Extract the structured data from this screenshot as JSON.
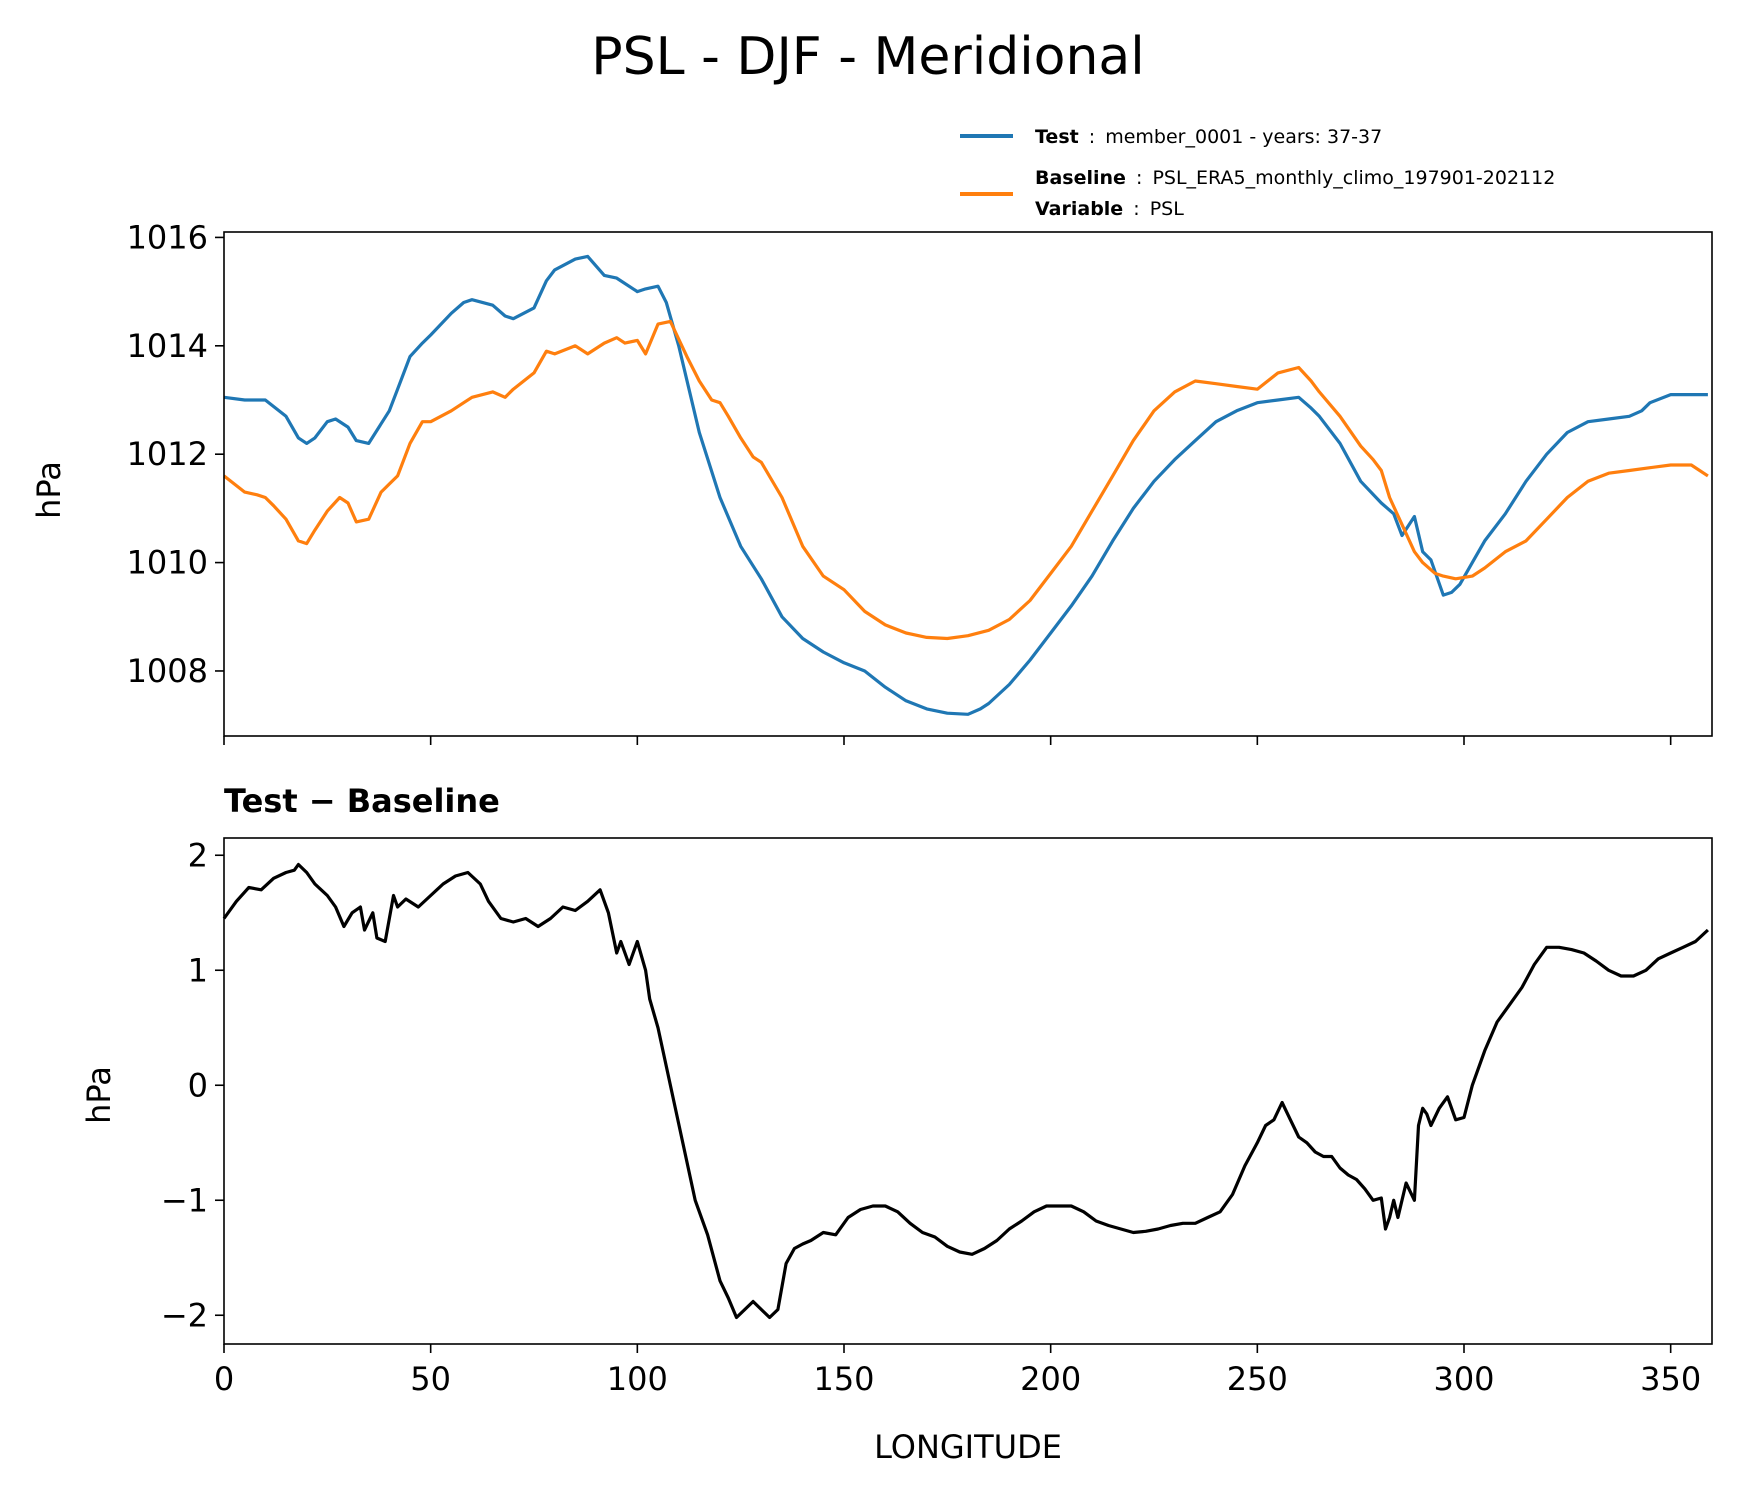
{
  "title": "PSL - DJF - Meridional",
  "legend": {
    "test_label": "Test",
    "test_text": "member_0001 - years: 37-37",
    "baseline_label": "Baseline",
    "baseline_text": "PSL_ERA5_monthly_climo_197901-202112",
    "variable_label": "Variable",
    "variable_text": "PSL",
    "sep": ":"
  },
  "colors": {
    "test": "#1f77b4",
    "baseline": "#ff7f0e",
    "diff": "#000000"
  },
  "chart_data": [
    {
      "type": "line",
      "title": "",
      "xlabel": "",
      "ylabel": "hPa",
      "xlim": [
        0,
        360
      ],
      "ylim": [
        1006.8,
        1016.1
      ],
      "yticks": [
        1008,
        1010,
        1012,
        1014,
        1016
      ],
      "ytick_labels": [
        "1008",
        "1010",
        "1012",
        "1014",
        "1016"
      ],
      "xticks": [
        0,
        50,
        100,
        150,
        200,
        250,
        300,
        350
      ],
      "series": [
        {
          "name": "Test",
          "x": [
            0,
            5,
            10,
            15,
            18,
            20,
            22,
            25,
            27,
            30,
            32,
            35,
            40,
            42,
            45,
            48,
            50,
            55,
            58,
            60,
            65,
            68,
            70,
            75,
            78,
            80,
            85,
            88,
            92,
            95,
            100,
            102,
            105,
            107,
            110,
            115,
            120,
            125,
            130,
            135,
            140,
            145,
            150,
            155,
            160,
            165,
            170,
            175,
            180,
            183,
            185,
            190,
            195,
            200,
            205,
            210,
            215,
            220,
            225,
            230,
            235,
            240,
            245,
            250,
            255,
            260,
            263,
            265,
            270,
            275,
            280,
            283,
            285,
            288,
            290,
            292,
            295,
            297,
            299,
            302,
            305,
            310,
            315,
            320,
            325,
            330,
            335,
            340,
            343,
            345,
            350,
            355,
            359
          ],
          "values": [
            1013.05,
            1013.0,
            1013.0,
            1012.7,
            1012.3,
            1012.2,
            1012.3,
            1012.6,
            1012.65,
            1012.5,
            1012.25,
            1012.2,
            1012.8,
            1013.2,
            1013.8,
            1014.05,
            1014.2,
            1014.6,
            1014.8,
            1014.85,
            1014.75,
            1014.55,
            1014.5,
            1014.7,
            1015.2,
            1015.4,
            1015.6,
            1015.65,
            1015.3,
            1015.25,
            1015.0,
            1015.05,
            1015.1,
            1014.8,
            1014.0,
            1012.4,
            1011.2,
            1010.3,
            1009.7,
            1009.0,
            1008.6,
            1008.35,
            1008.15,
            1008.0,
            1007.7,
            1007.45,
            1007.3,
            1007.22,
            1007.2,
            1007.3,
            1007.4,
            1007.75,
            1008.2,
            1008.7,
            1009.2,
            1009.75,
            1010.4,
            1011.0,
            1011.5,
            1011.9,
            1012.25,
            1012.6,
            1012.8,
            1012.95,
            1013.0,
            1013.05,
            1012.85,
            1012.7,
            1012.2,
            1011.5,
            1011.1,
            1010.9,
            1010.5,
            1010.85,
            1010.2,
            1010.05,
            1009.4,
            1009.45,
            1009.6,
            1010.0,
            1010.4,
            1010.9,
            1011.5,
            1012.0,
            1012.4,
            1012.6,
            1012.65,
            1012.7,
            1012.8,
            1012.95,
            1013.1,
            1013.1,
            1013.1
          ]
        },
        {
          "name": "Baseline",
          "x": [
            0,
            5,
            8,
            10,
            12,
            15,
            18,
            20,
            22,
            25,
            28,
            30,
            32,
            35,
            38,
            40,
            42,
            45,
            48,
            50,
            55,
            58,
            60,
            65,
            68,
            70,
            75,
            78,
            80,
            85,
            88,
            92,
            95,
            97,
            100,
            102,
            105,
            108,
            112,
            115,
            118,
            120,
            122,
            125,
            128,
            130,
            135,
            140,
            145,
            150,
            155,
            160,
            165,
            170,
            175,
            180,
            185,
            190,
            195,
            200,
            205,
            210,
            215,
            220,
            225,
            230,
            235,
            240,
            245,
            250,
            255,
            260,
            263,
            265,
            270,
            275,
            278,
            280,
            282,
            285,
            288,
            290,
            293,
            295,
            298,
            302,
            305,
            310,
            315,
            320,
            325,
            330,
            335,
            340,
            345,
            350,
            355,
            359
          ],
          "values": [
            1011.6,
            1011.3,
            1011.25,
            1011.2,
            1011.05,
            1010.8,
            1010.4,
            1010.35,
            1010.6,
            1010.95,
            1011.2,
            1011.1,
            1010.75,
            1010.8,
            1011.3,
            1011.45,
            1011.6,
            1012.2,
            1012.6,
            1012.6,
            1012.8,
            1012.95,
            1013.05,
            1013.15,
            1013.05,
            1013.2,
            1013.5,
            1013.9,
            1013.85,
            1014.0,
            1013.85,
            1014.05,
            1014.15,
            1014.05,
            1014.1,
            1013.85,
            1014.4,
            1014.45,
            1013.8,
            1013.35,
            1013.0,
            1012.95,
            1012.7,
            1012.3,
            1011.95,
            1011.85,
            1011.2,
            1010.3,
            1009.75,
            1009.5,
            1009.1,
            1008.85,
            1008.7,
            1008.62,
            1008.6,
            1008.65,
            1008.75,
            1008.95,
            1009.3,
            1009.8,
            1010.3,
            1010.95,
            1011.6,
            1012.25,
            1012.8,
            1013.15,
            1013.35,
            1013.3,
            1013.25,
            1013.2,
            1013.5,
            1013.6,
            1013.35,
            1013.15,
            1012.7,
            1012.15,
            1011.9,
            1011.7,
            1011.2,
            1010.7,
            1010.2,
            1010.0,
            1009.8,
            1009.75,
            1009.7,
            1009.75,
            1009.9,
            1010.2,
            1010.4,
            1010.8,
            1011.2,
            1011.5,
            1011.65,
            1011.7,
            1011.75,
            1011.8,
            1011.8,
            1011.6
          ]
        }
      ]
    },
    {
      "type": "line",
      "title": "Test − Baseline",
      "xlabel": "LONGITUDE",
      "ylabel": "hPa",
      "xlim": [
        0,
        360
      ],
      "ylim": [
        -2.25,
        2.15
      ],
      "yticks": [
        -2,
        -1,
        0,
        1,
        2
      ],
      "ytick_labels": [
        "−2",
        "−1",
        "0",
        "1",
        "2"
      ],
      "xticks": [
        0,
        50,
        100,
        150,
        200,
        250,
        300,
        350
      ],
      "xtick_labels": [
        "0",
        "50",
        "100",
        "150",
        "200",
        "250",
        "300",
        "350"
      ],
      "series": [
        {
          "name": "Test − Baseline",
          "x": [
            0,
            3,
            6,
            9,
            12,
            15,
            17,
            18,
            20,
            22,
            25,
            27,
            29,
            31,
            33,
            34,
            36,
            37,
            39,
            41,
            42,
            44,
            47,
            50,
            53,
            56,
            59,
            62,
            64,
            67,
            70,
            73,
            76,
            79,
            82,
            85,
            88,
            91,
            93,
            95,
            96,
            98,
            99,
            100,
            102,
            103,
            105,
            108,
            111,
            114,
            117,
            120,
            122,
            124,
            126,
            128,
            130,
            132,
            134,
            136,
            138,
            140,
            142,
            145,
            148,
            151,
            154,
            157,
            160,
            163,
            166,
            169,
            172,
            175,
            178,
            181,
            184,
            187,
            190,
            193,
            196,
            199,
            202,
            205,
            208,
            211,
            214,
            217,
            220,
            223,
            226,
            229,
            232,
            235,
            238,
            241,
            244,
            247,
            250,
            252,
            254,
            256,
            258,
            260,
            262,
            264,
            266,
            268,
            270,
            272,
            274,
            276,
            278,
            280,
            281,
            282,
            283,
            284,
            286,
            288,
            289,
            290,
            291,
            292,
            294,
            296,
            298,
            300,
            302,
            305,
            308,
            311,
            314,
            317,
            320,
            323,
            326,
            329,
            332,
            335,
            338,
            341,
            344,
            347,
            350,
            353,
            356,
            359
          ],
          "values": [
            1.45,
            1.6,
            1.72,
            1.7,
            1.8,
            1.85,
            1.87,
            1.92,
            1.85,
            1.75,
            1.65,
            1.55,
            1.38,
            1.5,
            1.55,
            1.35,
            1.5,
            1.28,
            1.25,
            1.65,
            1.55,
            1.62,
            1.55,
            1.65,
            1.75,
            1.82,
            1.85,
            1.75,
            1.6,
            1.45,
            1.42,
            1.45,
            1.38,
            1.45,
            1.55,
            1.52,
            1.6,
            1.7,
            1.5,
            1.15,
            1.25,
            1.05,
            1.15,
            1.25,
            1.0,
            0.75,
            0.5,
            0.0,
            -0.5,
            -1.0,
            -1.3,
            -1.7,
            -1.85,
            -2.02,
            -1.95,
            -1.88,
            -1.95,
            -2.02,
            -1.95,
            -1.55,
            -1.42,
            -1.38,
            -1.35,
            -1.28,
            -1.3,
            -1.15,
            -1.08,
            -1.05,
            -1.05,
            -1.1,
            -1.2,
            -1.28,
            -1.32,
            -1.4,
            -1.45,
            -1.47,
            -1.42,
            -1.35,
            -1.25,
            -1.18,
            -1.1,
            -1.05,
            -1.05,
            -1.05,
            -1.1,
            -1.18,
            -1.22,
            -1.25,
            -1.28,
            -1.27,
            -1.25,
            -1.22,
            -1.2,
            -1.2,
            -1.15,
            -1.1,
            -0.95,
            -0.7,
            -0.5,
            -0.35,
            -0.3,
            -0.15,
            -0.3,
            -0.45,
            -0.5,
            -0.58,
            -0.62,
            -0.62,
            -0.72,
            -0.78,
            -0.82,
            -0.9,
            -1.0,
            -0.98,
            -1.25,
            -1.15,
            -1.0,
            -1.15,
            -0.85,
            -1.0,
            -0.35,
            -0.2,
            -0.25,
            -0.35,
            -0.2,
            -0.1,
            -0.3,
            -0.28,
            0.0,
            0.3,
            0.55,
            0.7,
            0.85,
            1.05,
            1.2,
            1.2,
            1.18,
            1.15,
            1.08,
            1.0,
            0.95,
            0.95,
            1.0,
            1.1,
            1.15,
            1.2,
            1.25,
            1.35
          ]
        }
      ]
    }
  ]
}
